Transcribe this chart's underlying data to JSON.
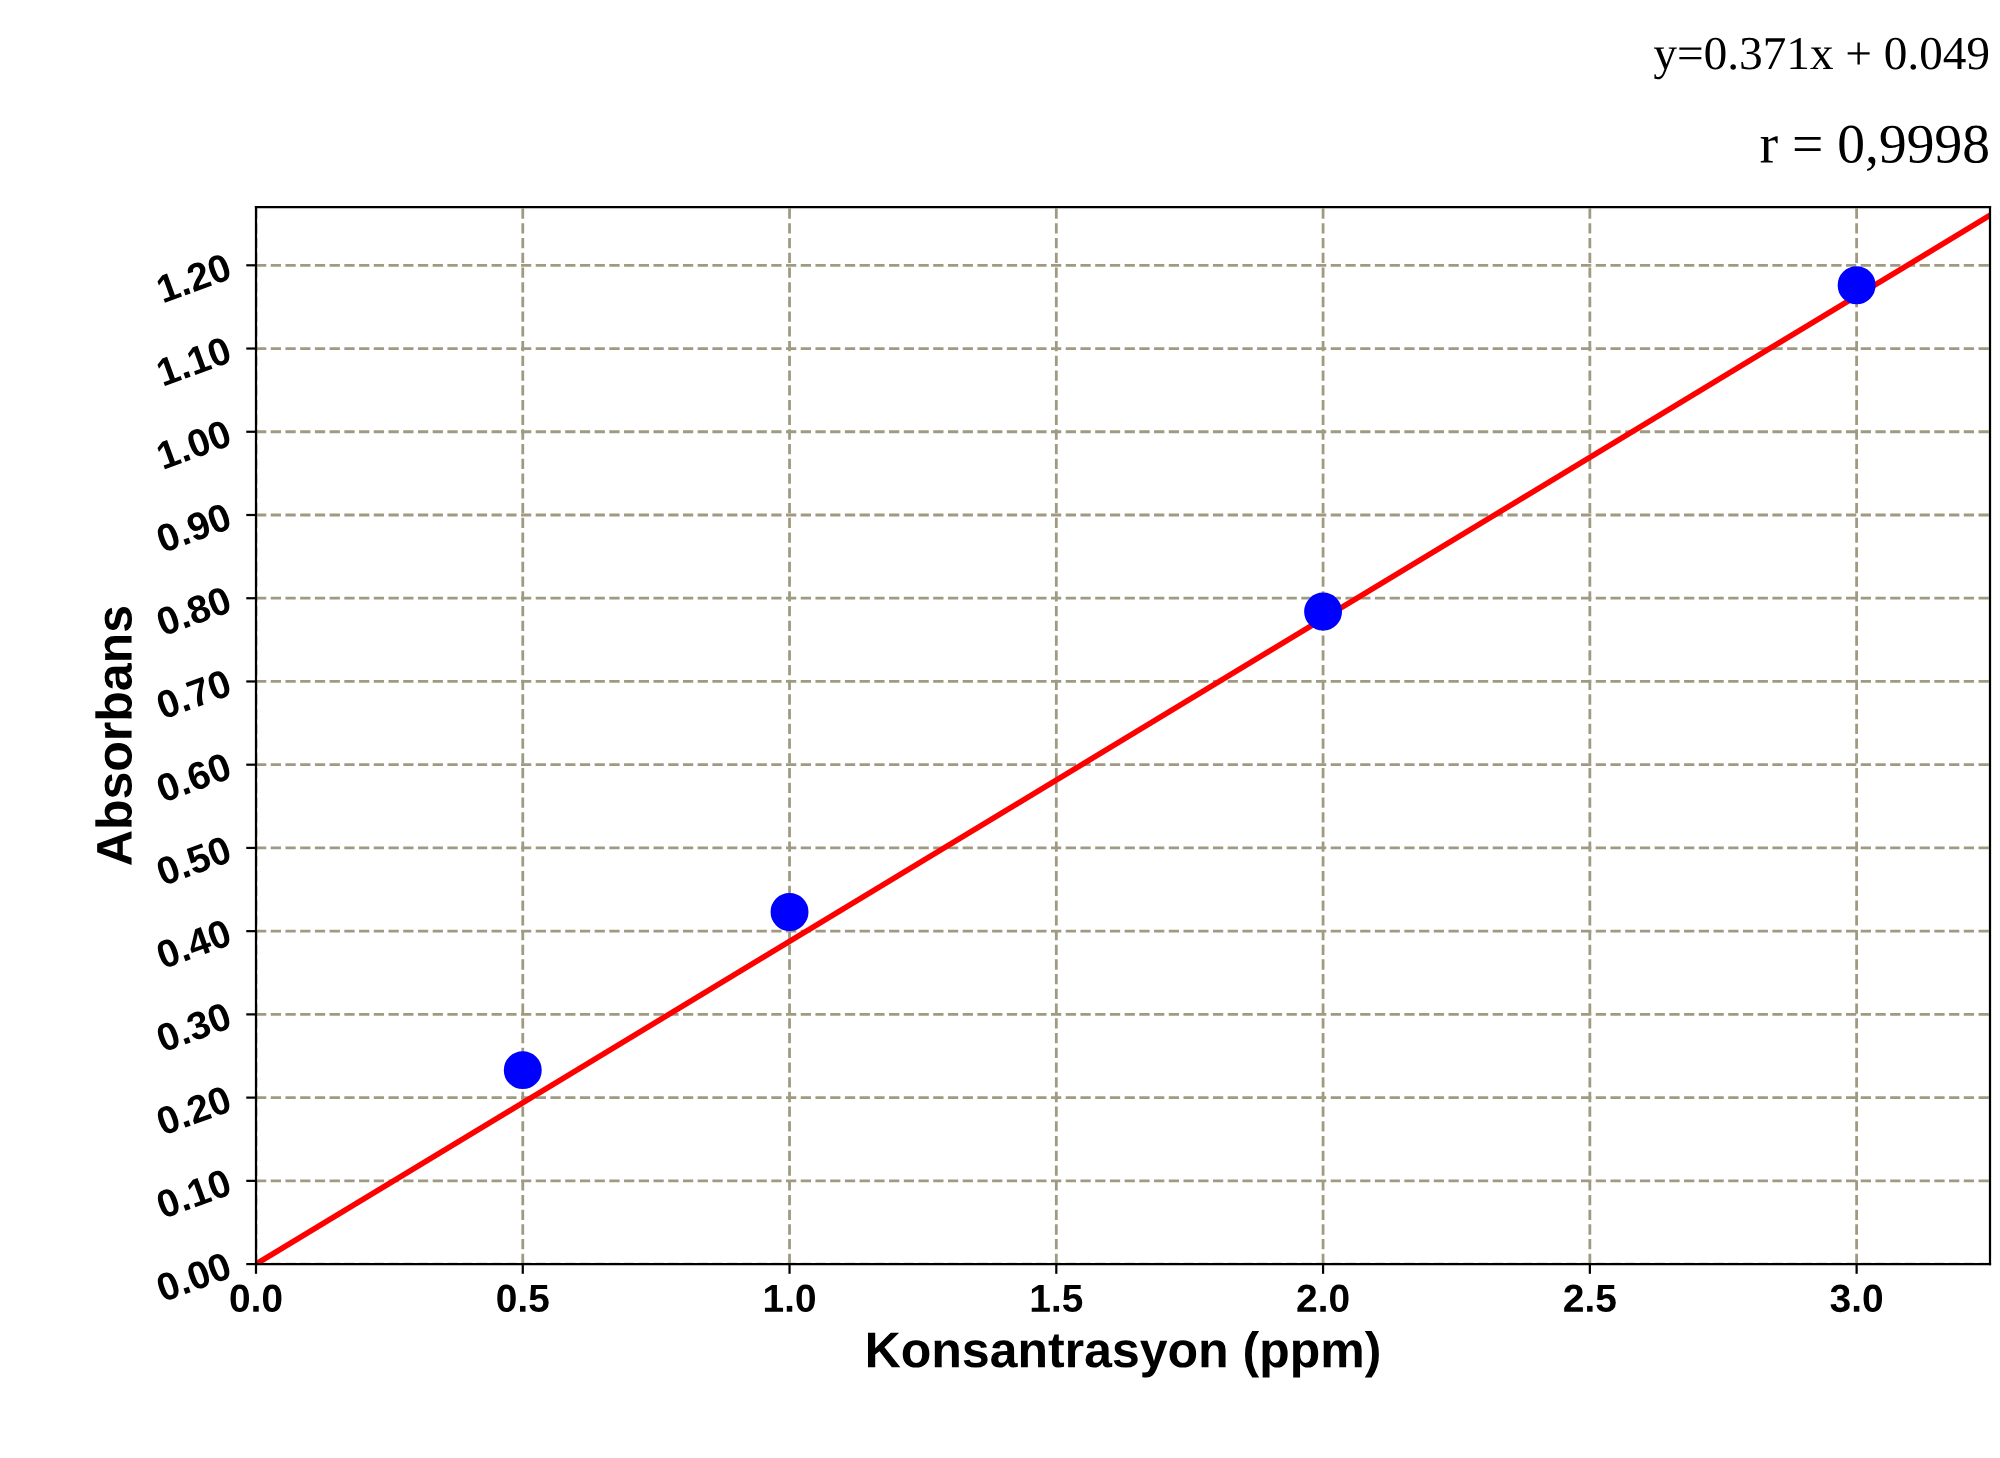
{
  "chart_data": {
    "type": "scatter",
    "xlabel": "Konsantrasyon (ppm)",
    "ylabel": "Absorbans",
    "annotations": [
      "y=0.371x + 0.049",
      "r = 0,9998"
    ],
    "series": [
      {
        "color": "#0000ff",
        "marker": "circle",
        "x": [
          0.5,
          1.0,
          2.0,
          3.0
        ],
        "values": [
          0.233,
          0.423,
          0.784,
          1.176
        ]
      },
      {
        "type": "line",
        "color": "#ff0000",
        "marker": "none",
        "line_style": "solid",
        "x": [
          0,
          3.25
        ],
        "values": [
          0,
          1.26
        ]
      }
    ],
    "xlim": [
      0,
      3.25
    ],
    "ylim": [
      0,
      1.27
    ],
    "xticks": [
      {
        "value": 0,
        "label": "0.0"
      },
      0.5,
      {
        "value": 1,
        "label": "1.0"
      },
      1.5,
      {
        "value": 2,
        "label": "2.0"
      },
      2.5,
      {
        "value": 3,
        "label": "3.0"
      }
    ],
    "yticks": [
      {
        "value": 0,
        "label": "0.00"
      },
      {
        "value": 0.1,
        "label": "0.10"
      },
      {
        "value": 0.2,
        "label": "0.20"
      },
      {
        "value": 0.3,
        "label": "0.30"
      },
      {
        "value": 0.4,
        "label": "0.40"
      },
      {
        "value": 0.5,
        "label": "0.50"
      },
      {
        "value": 0.6,
        "label": "0.60"
      },
      {
        "value": 0.7,
        "label": "0.70"
      },
      {
        "value": 0.8,
        "label": "0.80"
      },
      {
        "value": 0.9,
        "label": "0.90"
      },
      {
        "value": 1.0,
        "label": "1.00"
      },
      {
        "value": 1.1,
        "label": "1.10"
      },
      {
        "value": 1.2,
        "label": "1.20"
      }
    ],
    "grid": true,
    "legend": false
  }
}
